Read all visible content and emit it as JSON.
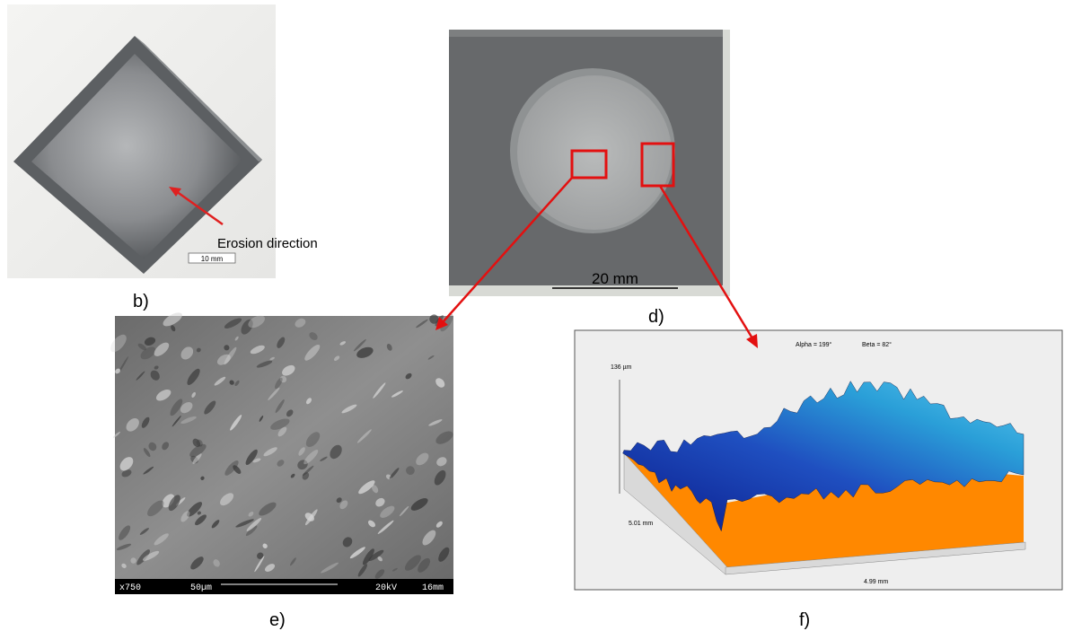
{
  "panels": {
    "b": {
      "label": "b)",
      "annotation": "Erosion direction",
      "scale": "10 mm"
    },
    "d": {
      "label": "d)",
      "scale": "20 mm"
    },
    "e": {
      "label": "e)",
      "magnification": "x750",
      "scale": "50µm",
      "voltage": "20kV",
      "distance": "16mm"
    },
    "f": {
      "label": "f)",
      "alpha": "Alpha = 199°",
      "beta": "Beta = 82°",
      "height": "136 µm",
      "depth": "5.01 mm",
      "width": "4.99 mm"
    }
  }
}
